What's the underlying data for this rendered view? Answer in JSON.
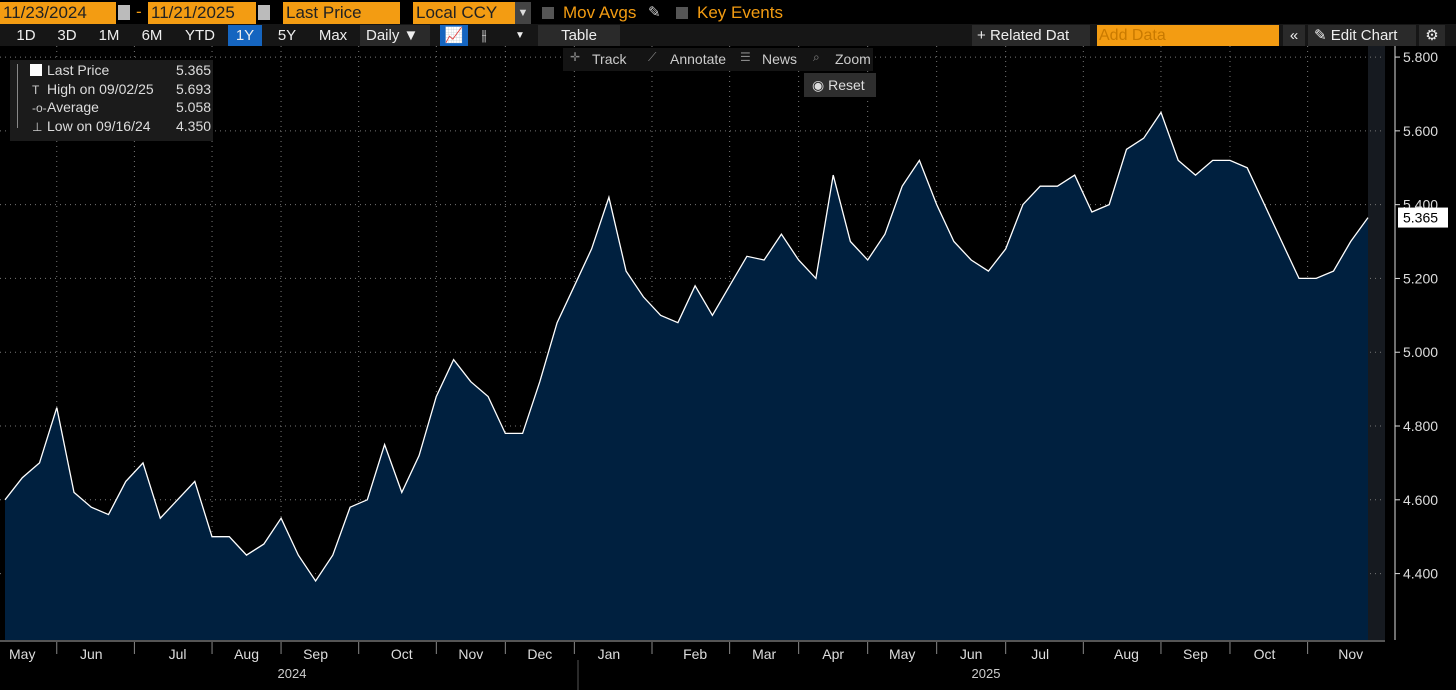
{
  "toolbar": {
    "start_date": "11/23/2024",
    "end_date": "11/21/2025",
    "field": "Last Price",
    "currency": "Local CCY",
    "mov_avgs": "Mov Avgs",
    "key_events": "Key Events"
  },
  "periods": [
    "1D",
    "3D",
    "1M",
    "6M",
    "YTD",
    "1Y",
    "5Y",
    "Max"
  ],
  "frequency": "Daily",
  "table": "Table",
  "related_data": "Related Dat",
  "add_data": "Add Data",
  "edit_chart": "Edit Chart",
  "tools": [
    "Track",
    "Annotate",
    "News",
    "Zoom"
  ],
  "reset": "Reset",
  "legend": [
    {
      "label": "Last Price",
      "value": "5.365"
    },
    {
      "label": "High on 09/02/25",
      "value": "5.693"
    },
    {
      "label": "Average",
      "value": "5.058"
    },
    {
      "label": "Low on 09/16/24",
      "value": "4.350"
    }
  ],
  "chart_data": {
    "type": "area",
    "color": "#00203f",
    "line_color": "#ffffff",
    "grid": true,
    "categories": [
      null,
      "May",
      null,
      null,
      null,
      "Jun",
      null,
      null,
      null,
      null,
      "Jul",
      null,
      null,
      null,
      "Aug",
      null,
      null,
      null,
      "Sep",
      null,
      null,
      null,
      null,
      "Oct",
      null,
      null,
      null,
      "Nov",
      null,
      null,
      null,
      "Dec",
      null,
      null,
      null,
      "Jan",
      null,
      null,
      null,
      null,
      "Feb",
      null,
      null,
      null,
      "Mar",
      null,
      null,
      null,
      "Apr",
      null,
      null,
      null,
      "May",
      null,
      null,
      null,
      "Jun",
      null,
      null,
      null,
      "Jul",
      null,
      null,
      null,
      null,
      "Aug",
      null,
      null,
      null,
      "Sep",
      null,
      null,
      null,
      "Oct",
      null,
      null,
      null,
      null,
      "Nov",
      null
    ],
    "values": [
      4.6,
      4.66,
      4.7,
      4.85,
      4.62,
      4.58,
      4.56,
      4.65,
      4.7,
      4.55,
      4.6,
      4.65,
      4.5,
      4.5,
      4.45,
      4.48,
      4.55,
      4.45,
      4.38,
      4.45,
      4.58,
      4.6,
      4.75,
      4.62,
      4.72,
      4.88,
      4.98,
      4.92,
      4.88,
      4.78,
      4.78,
      4.92,
      5.08,
      5.18,
      5.28,
      5.42,
      5.22,
      5.15,
      5.1,
      5.08,
      5.18,
      5.1,
      5.18,
      5.26,
      5.25,
      5.32,
      5.25,
      5.2,
      5.48,
      5.3,
      5.25,
      5.32,
      5.45,
      5.52,
      5.4,
      5.3,
      5.25,
      5.22,
      5.28,
      5.4,
      5.45,
      5.45,
      5.48,
      5.38,
      5.4,
      5.55,
      5.58,
      5.65,
      5.52,
      5.48,
      5.52,
      5.52,
      5.5,
      5.4,
      5.3,
      5.2,
      5.2,
      5.22,
      5.3,
      5.365
    ],
    "year_labels": [
      "2024",
      "2025"
    ],
    "ylim": [
      4.22,
      5.83
    ],
    "yticks": [
      {
        "value": 4.4,
        "label": "4.400"
      },
      {
        "value": 4.6,
        "label": "4.600"
      },
      {
        "value": 4.8,
        "label": "4.800"
      },
      {
        "value": 5.0,
        "label": "5.000"
      },
      {
        "value": 5.2,
        "label": "5.200"
      },
      {
        "value": 5.4,
        "label": "5.400"
      },
      {
        "value": 5.6,
        "label": "5.600"
      },
      {
        "value": 5.8,
        "label": "5.800"
      }
    ]
  }
}
